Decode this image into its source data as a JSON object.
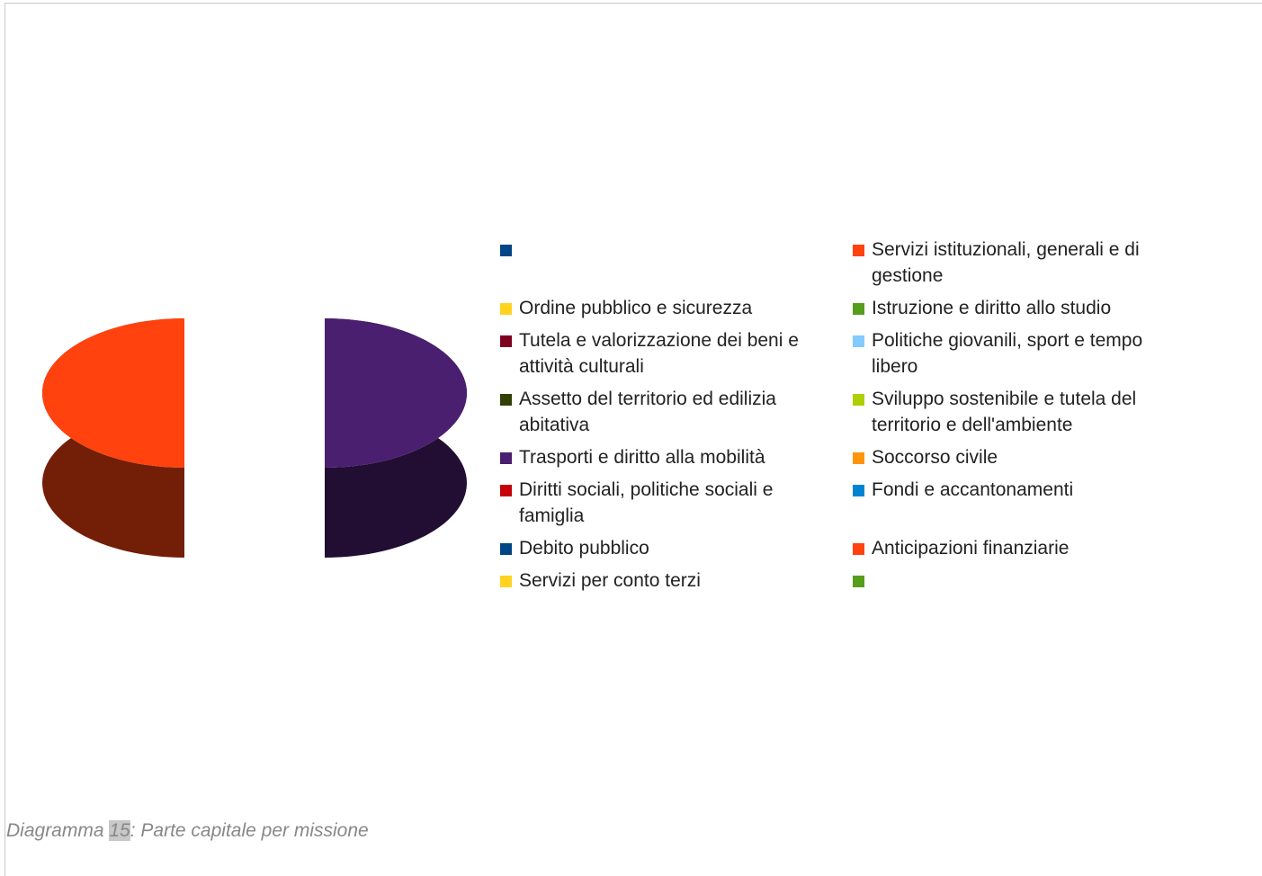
{
  "chart_data": {
    "type": "pie",
    "categories": [
      null,
      "Servizi istituzionali, generali e di gestione",
      "Ordine pubblico e sicurezza",
      "Istruzione e diritto allo studio",
      "Tutela e valorizzazione dei beni e attività culturali",
      "Politiche giovanili, sport e tempo libero",
      "Assetto del territorio ed edilizia abitativa",
      "Sviluppo sostenibile e tutela del territorio e dell'ambiente",
      "Trasporti e diritto alla mobilità",
      "Soccorso civile",
      "Diritti sociali, politiche sociali e famiglia",
      "Fondi e accantonamenti",
      "Debito pubblico",
      "Anticipazioni finanziarie",
      "Servizi per conto terzi",
      null
    ],
    "values": [
      0,
      50,
      0,
      0,
      0,
      0,
      0,
      0,
      50,
      0,
      0,
      0,
      0,
      0,
      0,
      0
    ],
    "colors": [
      "#004586",
      "#ff420e",
      "#ffd320",
      "#579d1c",
      "#7e0021",
      "#83caff",
      "#314004",
      "#aecf00",
      "#4b1f6f",
      "#ff950e",
      "#c5000b",
      "#0084d1",
      "#004586",
      "#ff420e",
      "#ffd320",
      "#579d1c"
    ],
    "caption": {
      "prefix": "Diagramma",
      "number": "15",
      "text": ": Parte capitale per missione"
    }
  }
}
